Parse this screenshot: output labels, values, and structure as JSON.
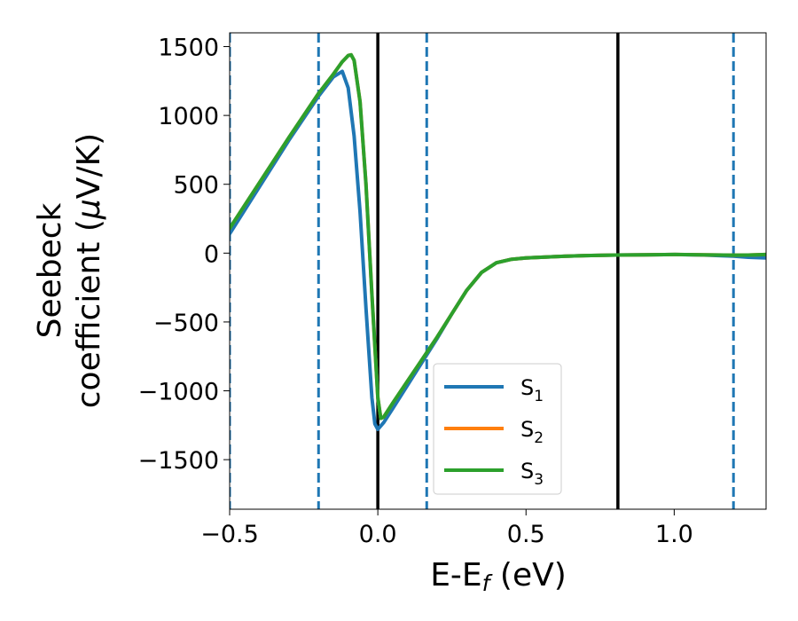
{
  "chart_data": {
    "type": "line",
    "xlabel": {
      "main": "E-E",
      "sub": "f",
      "unit": " (eV)"
    },
    "ylabel": {
      "line1": "Seebeck",
      "line2_prefix": "coefficient  (",
      "mu": "μ",
      "line2_suffix": "V/K)"
    },
    "xlim": [
      -0.5,
      1.31
    ],
    "ylim": [
      -1860,
      1600
    ],
    "x_ticks": [
      {
        "value": -0.5,
        "label": "−0.5"
      },
      {
        "value": 0.0,
        "label": "0.0"
      },
      {
        "value": 0.5,
        "label": "0.5"
      },
      {
        "value": 1.0,
        "label": "1.0"
      }
    ],
    "y_ticks": [
      {
        "value": 1500,
        "label": "1500"
      },
      {
        "value": 1000,
        "label": "1000"
      },
      {
        "value": 500,
        "label": "500"
      },
      {
        "value": 0,
        "label": "0"
      },
      {
        "value": -500,
        "label": "−500"
      },
      {
        "value": -1000,
        "label": "−1000"
      },
      {
        "value": -1500,
        "label": "−1500"
      }
    ],
    "vertical_lines": [
      {
        "x": -0.5,
        "style": "dashed",
        "color": "#1f77b4"
      },
      {
        "x": -0.2,
        "style": "dashed",
        "color": "#1f77b4"
      },
      {
        "x": 0.165,
        "style": "dashed",
        "color": "#1f77b4"
      },
      {
        "x": 1.2,
        "style": "dashed",
        "color": "#1f77b4"
      },
      {
        "x": 0.0,
        "style": "solid",
        "color": "#000000"
      },
      {
        "x": 0.81,
        "style": "solid",
        "color": "#000000"
      }
    ],
    "series": [
      {
        "name": "S",
        "sub": "1",
        "color": "#1f77b4",
        "x": [
          -0.5,
          -0.4,
          -0.3,
          -0.2,
          -0.15,
          -0.12,
          -0.1,
          -0.08,
          -0.06,
          -0.04,
          -0.02,
          -0.01,
          0.0,
          0.02,
          0.05,
          0.1,
          0.15,
          0.2,
          0.25,
          0.3,
          0.35,
          0.4,
          0.45,
          0.5,
          0.6,
          0.7,
          0.8,
          0.9,
          1.0,
          1.1,
          1.2,
          1.25,
          1.31
        ],
        "y": [
          140,
          480,
          820,
          1140,
          1280,
          1320,
          1200,
          850,
          300,
          -400,
          -1050,
          -1240,
          -1280,
          -1230,
          -1130,
          -960,
          -790,
          -620,
          -440,
          -270,
          -140,
          -70,
          -45,
          -35,
          -25,
          -18,
          -14,
          -12,
          -10,
          -14,
          -22,
          -30,
          -35
        ]
      },
      {
        "name": "S",
        "sub": "2",
        "color": "#ff7f0e",
        "x": [
          -0.5,
          -0.4,
          -0.3,
          -0.2,
          -0.15,
          -0.12,
          -0.1,
          -0.09,
          -0.08,
          -0.06,
          -0.04,
          -0.02,
          0.0,
          0.01,
          0.02,
          0.05,
          0.1,
          0.15,
          0.2,
          0.25,
          0.3,
          0.35,
          0.4,
          0.45,
          0.5,
          0.6,
          0.7,
          0.8,
          0.9,
          1.0,
          1.1,
          1.2,
          1.25,
          1.31
        ],
        "y": [
          180,
          510,
          840,
          1160,
          1300,
          1390,
          1435,
          1440,
          1400,
          1100,
          500,
          -300,
          -1050,
          -1200,
          -1190,
          -1090,
          -930,
          -770,
          -610,
          -440,
          -270,
          -140,
          -70,
          -45,
          -35,
          -25,
          -18,
          -14,
          -12,
          -10,
          -12,
          -15,
          -14,
          -10
        ]
      },
      {
        "name": "S",
        "sub": "3",
        "color": "#2ca02c",
        "x": [
          -0.5,
          -0.4,
          -0.3,
          -0.2,
          -0.15,
          -0.12,
          -0.1,
          -0.09,
          -0.08,
          -0.06,
          -0.04,
          -0.02,
          0.0,
          0.01,
          0.02,
          0.05,
          0.1,
          0.15,
          0.2,
          0.25,
          0.3,
          0.35,
          0.4,
          0.45,
          0.5,
          0.6,
          0.7,
          0.8,
          0.9,
          1.0,
          1.1,
          1.2,
          1.25,
          1.31
        ],
        "y": [
          180,
          510,
          840,
          1160,
          1300,
          1390,
          1435,
          1440,
          1400,
          1100,
          500,
          -300,
          -1050,
          -1200,
          -1190,
          -1090,
          -930,
          -770,
          -610,
          -440,
          -270,
          -140,
          -70,
          -45,
          -35,
          -25,
          -18,
          -14,
          -12,
          -10,
          -12,
          -15,
          -14,
          -10
        ]
      }
    ],
    "legend": {
      "placement": "lower-center"
    }
  }
}
